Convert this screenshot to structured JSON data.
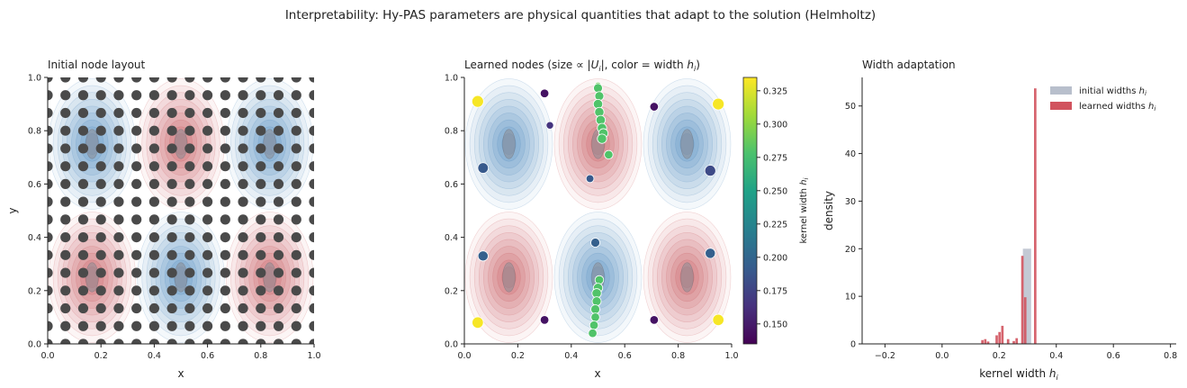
{
  "figure_title": "Interpretability: Hy-PAS parameters are physical quantities that adapt to the solution (Helmholtz)",
  "colors": {
    "node_gray": "#4a4a4a",
    "field_positive": "#c2434a",
    "field_negative": "#3b7bb8",
    "hist_initial": "#b8bfcc",
    "hist_learned": "#d1535e",
    "colormap": [
      "#440154",
      "#46327e",
      "#365c8d",
      "#277f8e",
      "#1fa187",
      "#4ac16d",
      "#a0da39",
      "#fde725"
    ]
  },
  "chart_data": [
    {
      "type": "scatter",
      "title": "Initial node layout",
      "xlabel": "x",
      "ylabel": "y",
      "xlim": [
        0,
        1
      ],
      "ylim": [
        0,
        1
      ],
      "xticks": [
        "0.0",
        "0.2",
        "0.4",
        "0.6",
        "0.8",
        "1.0"
      ],
      "yticks": [
        "0.0",
        "0.2",
        "0.4",
        "0.6",
        "0.8",
        "1.0"
      ],
      "background": "contour of sin(3πx)·sin(2πy)",
      "grid_nodes": 16
    },
    {
      "type": "scatter",
      "title": "Learned nodes (size ∝ |U_i|, color = width h_i)",
      "title_parts": {
        "main": "Learned nodes (size ∝ |",
        "u": "U",
        "i1": "i",
        "mid": "|, color = width ",
        "h": "h",
        "i2": "i",
        "end": ")"
      },
      "xlabel": "x",
      "xlim": [
        0,
        1
      ],
      "ylim": [
        0,
        1
      ],
      "xticks": [
        "0.0",
        "0.2",
        "0.4",
        "0.6",
        "0.8",
        "1.0"
      ],
      "yticks": [
        "0.0",
        "0.2",
        "0.4",
        "0.6",
        "0.8",
        "1.0"
      ],
      "colorbar_label": "kernel width h_i",
      "colorbar_range": [
        0.135,
        0.335
      ],
      "colorbar_ticks": [
        "0.150",
        "0.175",
        "0.200",
        "0.225",
        "0.250",
        "0.275",
        "0.300",
        "0.325"
      ],
      "colorbar_tick_values": [
        0.15,
        0.175,
        0.2,
        0.225,
        0.25,
        0.275,
        0.3,
        0.325
      ],
      "points": [
        {
          "x": 0.05,
          "y": 0.91,
          "h": 0.333,
          "s": 1.0
        },
        {
          "x": 0.3,
          "y": 0.94,
          "h": 0.145,
          "s": 0.6
        },
        {
          "x": 0.32,
          "y": 0.82,
          "h": 0.165,
          "s": 0.45
        },
        {
          "x": 0.07,
          "y": 0.66,
          "h": 0.19,
          "s": 0.85
        },
        {
          "x": 0.47,
          "y": 0.62,
          "h": 0.19,
          "s": 0.5
        },
        {
          "x": 0.71,
          "y": 0.89,
          "h": 0.145,
          "s": 0.6
        },
        {
          "x": 0.95,
          "y": 0.9,
          "h": 0.333,
          "s": 1.0
        },
        {
          "x": 0.92,
          "y": 0.65,
          "h": 0.18,
          "s": 0.9
        },
        {
          "x": 0.07,
          "y": 0.33,
          "h": 0.195,
          "s": 0.8
        },
        {
          "x": 0.49,
          "y": 0.38,
          "h": 0.195,
          "s": 0.65
        },
        {
          "x": 0.92,
          "y": 0.34,
          "h": 0.195,
          "s": 0.8
        },
        {
          "x": 0.05,
          "y": 0.08,
          "h": 0.333,
          "s": 0.95
        },
        {
          "x": 0.3,
          "y": 0.09,
          "h": 0.145,
          "s": 0.6
        },
        {
          "x": 0.71,
          "y": 0.09,
          "h": 0.145,
          "s": 0.6
        },
        {
          "x": 0.95,
          "y": 0.09,
          "h": 0.333,
          "s": 0.95
        },
        {
          "x": 0.5,
          "y": 0.97,
          "h": 0.29,
          "s": 0.35
        },
        {
          "x": 0.5,
          "y": 0.96,
          "h": 0.28,
          "s": 0.65
        },
        {
          "x": 0.505,
          "y": 0.93,
          "h": 0.28,
          "s": 0.65
        },
        {
          "x": 0.5,
          "y": 0.9,
          "h": 0.28,
          "s": 0.7
        },
        {
          "x": 0.505,
          "y": 0.87,
          "h": 0.28,
          "s": 0.7
        },
        {
          "x": 0.51,
          "y": 0.84,
          "h": 0.28,
          "s": 0.7
        },
        {
          "x": 0.515,
          "y": 0.81,
          "h": 0.28,
          "s": 0.7
        },
        {
          "x": 0.52,
          "y": 0.79,
          "h": 0.28,
          "s": 0.7
        },
        {
          "x": 0.515,
          "y": 0.77,
          "h": 0.28,
          "s": 0.7
        },
        {
          "x": 0.54,
          "y": 0.71,
          "h": 0.28,
          "s": 0.6
        },
        {
          "x": 0.505,
          "y": 0.24,
          "h": 0.28,
          "s": 0.6
        },
        {
          "x": 0.5,
          "y": 0.21,
          "h": 0.28,
          "s": 0.7
        },
        {
          "x": 0.495,
          "y": 0.19,
          "h": 0.28,
          "s": 0.7
        },
        {
          "x": 0.495,
          "y": 0.16,
          "h": 0.28,
          "s": 0.65
        },
        {
          "x": 0.49,
          "y": 0.13,
          "h": 0.28,
          "s": 0.65
        },
        {
          "x": 0.49,
          "y": 0.1,
          "h": 0.28,
          "s": 0.6
        },
        {
          "x": 0.485,
          "y": 0.07,
          "h": 0.28,
          "s": 0.6
        },
        {
          "x": 0.48,
          "y": 0.04,
          "h": 0.28,
          "s": 0.6
        }
      ]
    },
    {
      "type": "bar",
      "title": "Width adaptation",
      "xlabel": "kernel width h_i",
      "ylabel": "density",
      "xlim": [
        -0.28,
        0.82
      ],
      "ylim": [
        0,
        56
      ],
      "xticks": [
        "−0.2",
        "0.0",
        "0.2",
        "0.4",
        "0.6",
        "0.8"
      ],
      "xtick_values": [
        -0.2,
        0.0,
        0.2,
        0.4,
        0.6,
        0.8
      ],
      "yticks": [
        "0",
        "10",
        "20",
        "30",
        "40",
        "50"
      ],
      "ytick_values": [
        0,
        10,
        20,
        30,
        40,
        50
      ],
      "legend_position": "top-right",
      "legend": [
        "initial widths h_i",
        "learned widths h_i"
      ],
      "series": [
        {
          "name": "initial widths h_i",
          "bins": [
            {
              "x0": 0.283,
              "x1": 0.312,
              "y": 20
            }
          ]
        },
        {
          "name": "learned widths h_i",
          "bins": [
            {
              "x0": 0.137,
              "x1": 0.147,
              "y": 0.8
            },
            {
              "x0": 0.147,
              "x1": 0.157,
              "y": 1.0
            },
            {
              "x0": 0.157,
              "x1": 0.167,
              "y": 0.5
            },
            {
              "x0": 0.187,
              "x1": 0.197,
              "y": 1.8
            },
            {
              "x0": 0.197,
              "x1": 0.207,
              "y": 2.5
            },
            {
              "x0": 0.207,
              "x1": 0.217,
              "y": 3.8
            },
            {
              "x0": 0.227,
              "x1": 0.237,
              "y": 1.0
            },
            {
              "x0": 0.247,
              "x1": 0.257,
              "y": 0.6
            },
            {
              "x0": 0.257,
              "x1": 0.267,
              "y": 1.2
            },
            {
              "x0": 0.277,
              "x1": 0.287,
              "y": 18.5
            },
            {
              "x0": 0.287,
              "x1": 0.297,
              "y": 9.8
            },
            {
              "x0": 0.322,
              "x1": 0.332,
              "y": 53.7
            }
          ]
        }
      ]
    }
  ]
}
